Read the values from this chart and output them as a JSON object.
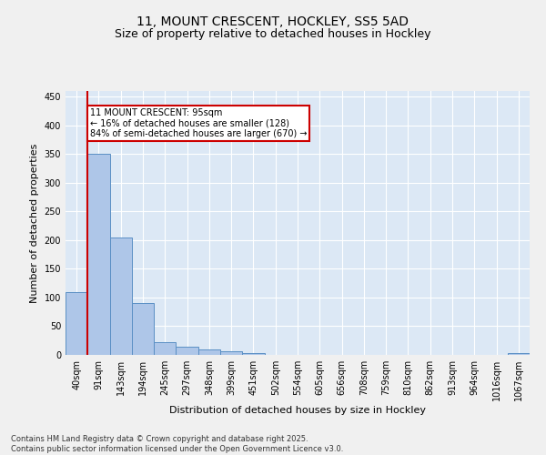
{
  "title": "11, MOUNT CRESCENT, HOCKLEY, SS5 5AD",
  "subtitle": "Size of property relative to detached houses in Hockley",
  "xlabel": "Distribution of detached houses by size in Hockley",
  "ylabel": "Number of detached properties",
  "bin_labels": [
    "40sqm",
    "91sqm",
    "143sqm",
    "194sqm",
    "245sqm",
    "297sqm",
    "348sqm",
    "399sqm",
    "451sqm",
    "502sqm",
    "554sqm",
    "605sqm",
    "656sqm",
    "708sqm",
    "759sqm",
    "810sqm",
    "862sqm",
    "913sqm",
    "964sqm",
    "1016sqm",
    "1067sqm"
  ],
  "bar_values": [
    110,
    350,
    204,
    90,
    23,
    14,
    9,
    7,
    3,
    0,
    0,
    0,
    0,
    0,
    0,
    0,
    0,
    0,
    0,
    0,
    3
  ],
  "bar_color": "#aec6e8",
  "bar_edge_color": "#5a8fc4",
  "plot_bg_color": "#dce8f5",
  "grid_color": "#ffffff",
  "vline_color": "#cc0000",
  "annotation_text": "11 MOUNT CRESCENT: 95sqm\n← 16% of detached houses are smaller (128)\n84% of semi-detached houses are larger (670) →",
  "annotation_box_color": "#cc0000",
  "fig_bg_color": "#f0f0f0",
  "ylim": [
    0,
    460
  ],
  "yticks": [
    0,
    50,
    100,
    150,
    200,
    250,
    300,
    350,
    400,
    450
  ],
  "footer": "Contains HM Land Registry data © Crown copyright and database right 2025.\nContains public sector information licensed under the Open Government Licence v3.0.",
  "title_fontsize": 10,
  "subtitle_fontsize": 9,
  "ylabel_fontsize": 8,
  "xlabel_fontsize": 8,
  "tick_fontsize": 7,
  "footer_fontsize": 6
}
